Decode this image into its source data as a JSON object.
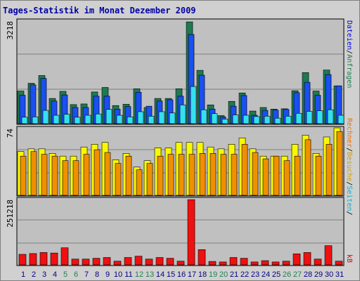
{
  "chart_data": {
    "type": "bar",
    "title": "Tages-Statistik im Monat Dezember 2009",
    "categories": [
      "1",
      "2",
      "3",
      "4",
      "5",
      "6",
      "7",
      "8",
      "9",
      "10",
      "11",
      "12",
      "13",
      "14",
      "15",
      "16",
      "17",
      "18",
      "19",
      "20",
      "21",
      "22",
      "23",
      "24",
      "25",
      "26",
      "27",
      "28",
      "29",
      "30",
      "31"
    ],
    "weekend_days": [
      "5",
      "6",
      "12",
      "13",
      "19",
      "20",
      "26",
      "27"
    ],
    "panels": [
      {
        "id": "panel-requests",
        "ymax_label": "3218",
        "ylim": [
          0,
          3218
        ],
        "series": [
          {
            "name": "Anfragen",
            "color": "#1e7a50",
            "values": [
              1010,
              1250,
              1490,
              780,
              1000,
              590,
              610,
              980,
              1120,
              560,
              600,
              1080,
              500,
              780,
              780,
              1080,
              3150,
              1650,
              580,
              250,
              690,
              950,
              390,
              500,
              450,
              460,
              1020,
              1580,
              1010,
              1660,
              1170
            ]
          },
          {
            "name": "Dateien",
            "color": "#1a4ff0",
            "values": [
              880,
              1200,
              1400,
              700,
              890,
              500,
              500,
              850,
              850,
              450,
              530,
              970,
              540,
              700,
              740,
              850,
              2760,
              1500,
              450,
              210,
              540,
              870,
              260,
              410,
              420,
              440,
              960,
              1280,
              880,
              1520,
              1170
            ]
          },
          {
            "name": "Seiten",
            "color": "#33e0f0",
            "values": [
              200,
              210,
              410,
              260,
              290,
              200,
              260,
              300,
              440,
              260,
              210,
              370,
              230,
              370,
              330,
              580,
              1150,
              430,
              310,
              140,
              270,
              260,
              220,
              230,
              170,
              230,
              320,
              380,
              400,
              430,
              260
            ]
          }
        ]
      },
      {
        "id": "panel-visits",
        "ymax_label": "74",
        "ylim": [
          0,
          74
        ],
        "series": [
          {
            "name": "Besuche",
            "color": "#f8f800",
            "values": [
              48,
              51,
              51,
              46,
              43,
              43,
              53,
              56,
              58,
              39,
              46,
              31,
              38,
              52,
              52,
              58,
              58,
              58,
              53,
              51,
              56,
              63,
              51,
              43,
              43,
              43,
              56,
              66,
              46,
              64,
              74
            ]
          },
          {
            "name": "Rechner",
            "color": "#f09000",
            "values": [
              43,
              48,
              45,
              43,
              38,
              38,
              45,
              50,
              47,
              35,
              43,
              28,
              35,
              43,
              45,
              45,
              45,
              46,
              46,
              45,
              45,
              56,
              47,
              40,
              43,
              38,
              43,
              61,
              43,
              56,
              70
            ]
          }
        ]
      },
      {
        "id": "panel-kb",
        "ymax_label": "251218",
        "ylim": [
          0,
          251218
        ],
        "series": [
          {
            "name": "kB",
            "color": "#f01010",
            "values": [
              40000,
              43000,
              47000,
              45000,
              65000,
              22000,
              22000,
              25000,
              28000,
              14000,
              28000,
              33000,
              22000,
              28000,
              25000,
              14000,
              248000,
              58000,
              13000,
              11000,
              28000,
              25000,
              11000,
              16000,
              11000,
              14000,
              42000,
              47000,
              22000,
              73000,
              14000
            ]
          }
        ]
      }
    ],
    "legend_requests": {
      "files": "Dateien",
      "slash1": "/",
      "requests": "Anfragen"
    },
    "legend_visits": {
      "hosts": "Rechner",
      "slash1": "/",
      "visits": "Besuche",
      "slash2": "/",
      "pages": "Seiten",
      "slash3": "/"
    },
    "legend_kb": "kB"
  }
}
